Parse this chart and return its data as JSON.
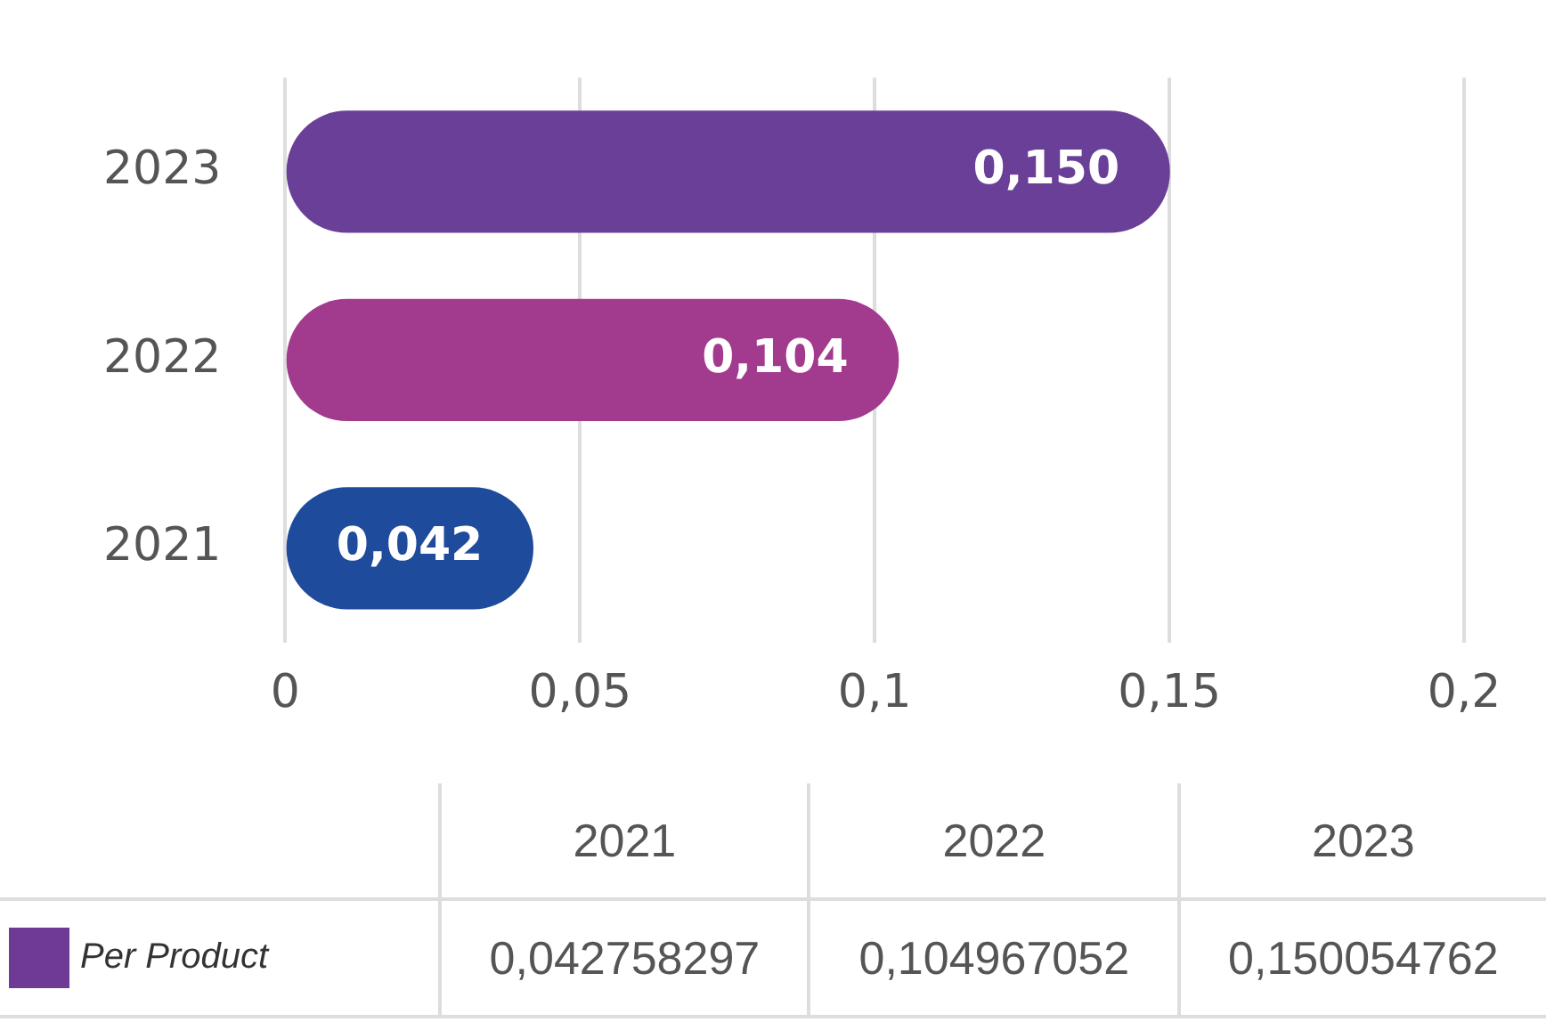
{
  "chart_data": {
    "type": "bar",
    "orientation": "horizontal",
    "categories": [
      "2023",
      "2022",
      "2021"
    ],
    "series": [
      {
        "name": "Per Product",
        "color": "#6e3a96",
        "colors": [
          "#6a3f98",
          "#a23a8e",
          "#1f4b9c"
        ],
        "values": [
          0.15,
          0.104,
          0.042
        ],
        "value_labels": [
          "0,150",
          "0,104",
          "0,042"
        ]
      }
    ],
    "annotations": [
      "0,042758297",
      "0,104967052",
      "0,150054762"
    ],
    "xlim": [
      0,
      0.2
    ],
    "xticks": [
      0,
      {
        "value": 0.05,
        "label": "0,05"
      },
      {
        "value": 0.1,
        "label": "0,1"
      },
      {
        "value": 0.15,
        "label": "0,15"
      },
      {
        "value": 0.2,
        "label": "0,2"
      }
    ],
    "grid": "x",
    "legend": "bottom"
  }
}
